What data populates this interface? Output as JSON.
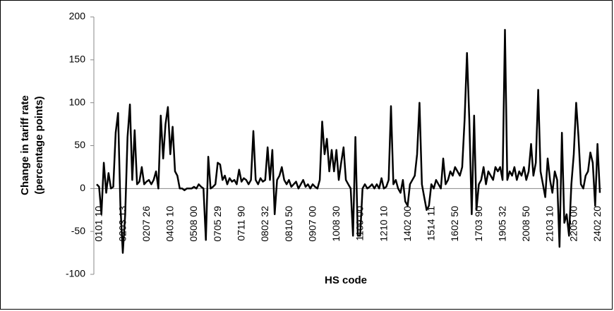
{
  "chart_data": {
    "type": "line",
    "x_label": "HS code",
    "y_label": [
      "Change in tariff rate",
      "(percentage points)"
    ],
    "ylim": [
      -100,
      200
    ],
    "yticks": [
      -100,
      -50,
      0,
      50,
      100,
      150,
      200
    ],
    "series": [
      {
        "color": "#000000",
        "values": [
          5,
          2,
          -30,
          30,
          -5,
          18,
          0,
          2,
          65,
          88,
          -20,
          -75,
          -30,
          60,
          98,
          10,
          68,
          5,
          8,
          25,
          5,
          8,
          10,
          5,
          10,
          20,
          0,
          85,
          35,
          75,
          95,
          40,
          72,
          20,
          15,
          0,
          0,
          -2,
          0,
          0,
          0,
          2,
          0,
          5,
          2,
          0,
          -60,
          37,
          0,
          2,
          5,
          30,
          28,
          10,
          15,
          5,
          12,
          8,
          10,
          5,
          22,
          8,
          12,
          10,
          5,
          10,
          67,
          10,
          5,
          12,
          8,
          10,
          48,
          10,
          45,
          -30,
          10,
          15,
          25,
          10,
          5,
          10,
          2,
          5,
          8,
          0,
          5,
          10,
          2,
          5,
          0,
          5,
          2,
          0,
          10,
          78,
          40,
          58,
          20,
          45,
          20,
          45,
          10,
          30,
          48,
          10,
          5,
          0,
          -55,
          60,
          -55,
          -55,
          0,
          5,
          0,
          2,
          5,
          0,
          5,
          0,
          12,
          0,
          2,
          10,
          96,
          5,
          10,
          0,
          -5,
          10,
          -15,
          -20,
          5,
          10,
          15,
          40,
          100,
          5,
          -10,
          -25,
          -20,
          5,
          0,
          10,
          5,
          0,
          35,
          5,
          10,
          20,
          15,
          25,
          20,
          15,
          25,
          80,
          158,
          80,
          -30,
          85,
          -25,
          5,
          10,
          25,
          5,
          20,
          15,
          10,
          25,
          20,
          25,
          10,
          185,
          10,
          20,
          15,
          25,
          10,
          20,
          15,
          25,
          10,
          20,
          52,
          15,
          30,
          115,
          20,
          5,
          -10,
          35,
          10,
          -5,
          20,
          10,
          -68,
          65,
          -40,
          -30,
          -55,
          5,
          40,
          100,
          60,
          5,
          0,
          15,
          20,
          42,
          30,
          -20,
          52,
          -5
        ]
      }
    ],
    "categories": [
      "0101 10",
      null,
      null,
      null,
      null,
      null,
      null,
      null,
      null,
      null,
      "0203 13",
      null,
      null,
      null,
      null,
      null,
      null,
      null,
      null,
      null,
      "0207 26",
      null,
      null,
      null,
      null,
      null,
      null,
      null,
      null,
      null,
      "0403 10",
      null,
      null,
      null,
      null,
      null,
      null,
      null,
      null,
      null,
      "0508 00",
      null,
      null,
      null,
      null,
      null,
      null,
      null,
      null,
      null,
      "0705 29",
      null,
      null,
      null,
      null,
      null,
      null,
      null,
      null,
      null,
      "0711 90",
      null,
      null,
      null,
      null,
      null,
      null,
      null,
      null,
      null,
      "0802 32",
      null,
      null,
      null,
      null,
      null,
      null,
      null,
      null,
      null,
      "0810 50",
      null,
      null,
      null,
      null,
      null,
      null,
      null,
      null,
      null,
      "0907 00",
      null,
      null,
      null,
      null,
      null,
      null,
      null,
      null,
      null,
      "1008 30",
      null,
      null,
      null,
      null,
      null,
      null,
      null,
      null,
      null,
      "1109 00",
      null,
      null,
      null,
      null,
      null,
      null,
      null,
      null,
      null,
      "1210 10",
      null,
      null,
      null,
      null,
      null,
      null,
      null,
      null,
      null,
      "1402 00",
      null,
      null,
      null,
      null,
      null,
      null,
      null,
      null,
      null,
      "1514 11",
      null,
      null,
      null,
      null,
      null,
      null,
      null,
      null,
      null,
      "1602 50",
      null,
      null,
      null,
      null,
      null,
      null,
      null,
      null,
      null,
      "1703 90",
      null,
      null,
      null,
      null,
      null,
      null,
      null,
      null,
      null,
      "1905 32",
      null,
      null,
      null,
      null,
      null,
      null,
      null,
      null,
      null,
      "2008 50",
      null,
      null,
      null,
      null,
      null,
      null,
      null,
      null,
      null,
      "2103 10",
      null,
      null,
      null,
      null,
      null,
      null,
      null,
      null,
      null,
      "2205 00",
      null,
      null,
      null,
      null,
      null,
      null,
      null,
      null,
      null,
      "2402 20",
      null,
      null
    ]
  }
}
